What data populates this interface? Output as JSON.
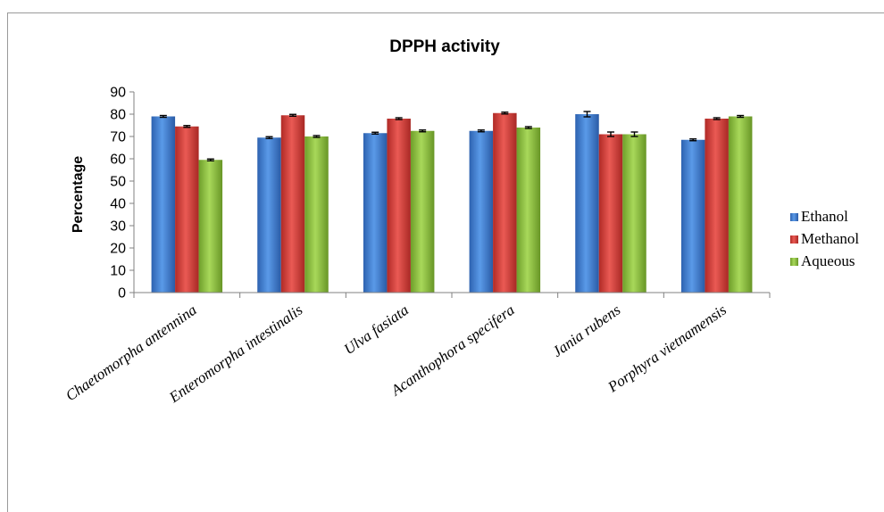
{
  "chart_data": {
    "type": "bar",
    "title": "DPPH activity",
    "xlabel": "",
    "ylabel": "Percentage",
    "ylim": [
      0,
      90
    ],
    "yticks": [
      0,
      10,
      20,
      30,
      40,
      50,
      60,
      70,
      80,
      90
    ],
    "categories": [
      "Chaetomorpha antennina",
      "Enteromorpha intestinalis",
      "Ulva fasiata",
      "Acanthophora specifera",
      "Jania rubens",
      "Porphyra vietnamensis"
    ],
    "series": [
      {
        "name": "Ethanol",
        "color": "#3F7FD6",
        "values": [
          79,
          69.5,
          71.5,
          72.5,
          80,
          68.5
        ],
        "errors": [
          0.4,
          0.4,
          0.4,
          0.4,
          1.2,
          0.4
        ]
      },
      {
        "name": "Methanol",
        "color": "#D83A35",
        "values": [
          74.5,
          79.5,
          78,
          80.5,
          71,
          78
        ],
        "errors": [
          0.4,
          0.4,
          0.4,
          0.4,
          1,
          0.4
        ]
      },
      {
        "name": "Aqueous",
        "color": "#8CC43C",
        "values": [
          59.5,
          70,
          72.5,
          74,
          71,
          79
        ],
        "errors": [
          0.4,
          0.4,
          0.4,
          0.4,
          1,
          0.4
        ]
      }
    ],
    "legend_position": "right",
    "grid": false,
    "error_bars": true
  }
}
